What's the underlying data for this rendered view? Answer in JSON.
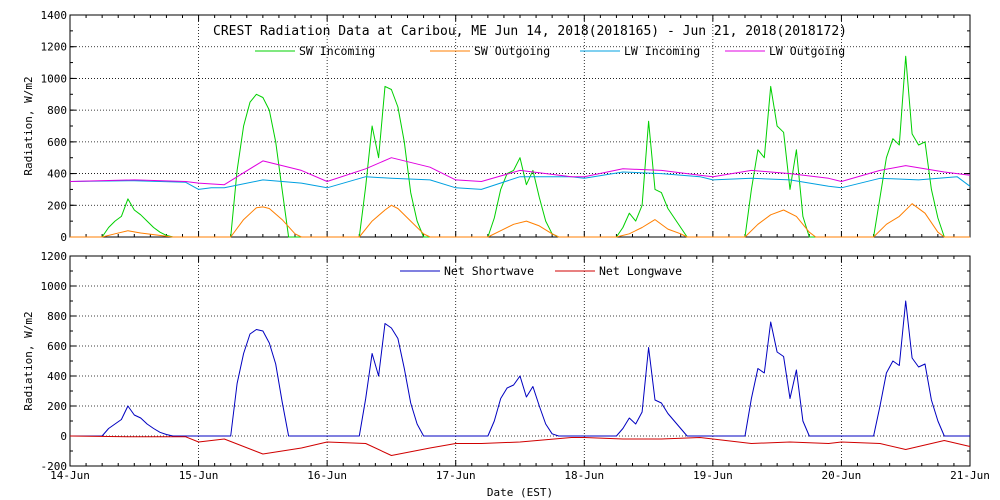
{
  "chart_data": [
    {
      "type": "line",
      "title": "CREST Radiation Data at Caribou, ME   Jun 14, 2018(2018165) - Jun 21, 2018(2018172)",
      "ylabel": "Radiation, W/m2",
      "xlabel": "",
      "ylim": [
        0,
        1400
      ],
      "yticks": [
        "0",
        "200",
        "400",
        "600",
        "800",
        "1000",
        "1200",
        "1400"
      ],
      "xlim": [
        0,
        7
      ],
      "grid": true,
      "legend": "top",
      "series": [
        {
          "name": "SW Incoming",
          "color": "#00d000",
          "x": [
            0.0,
            0.25,
            0.3,
            0.35,
            0.4,
            0.45,
            0.5,
            0.55,
            0.6,
            0.65,
            0.7,
            0.75,
            0.8,
            1.0,
            1.25,
            1.3,
            1.35,
            1.4,
            1.45,
            1.5,
            1.55,
            1.6,
            1.65,
            1.7,
            1.75,
            1.8,
            1.85,
            2.0,
            2.25,
            2.3,
            2.35,
            2.4,
            2.45,
            2.5,
            2.55,
            2.6,
            2.65,
            2.7,
            2.75,
            2.8,
            3.0,
            3.25,
            3.3,
            3.35,
            3.4,
            3.45,
            3.5,
            3.55,
            3.6,
            3.65,
            3.7,
            3.75,
            3.8,
            4.0,
            4.25,
            4.3,
            4.35,
            4.4,
            4.45,
            4.5,
            4.55,
            4.6,
            4.65,
            4.7,
            4.75,
            4.8,
            5.0,
            5.25,
            5.3,
            5.35,
            5.4,
            5.45,
            5.5,
            5.55,
            5.6,
            5.65,
            5.7,
            5.75,
            5.8,
            6.0,
            6.25,
            6.3,
            6.35,
            6.4,
            6.45,
            6.5,
            6.55,
            6.6,
            6.65,
            6.7,
            6.75,
            6.8,
            7.0
          ],
          "y": [
            0,
            0,
            60,
            100,
            130,
            240,
            170,
            140,
            100,
            60,
            30,
            10,
            0,
            0,
            0,
            420,
            700,
            850,
            900,
            880,
            800,
            600,
            300,
            0,
            0,
            0,
            0,
            0,
            0,
            320,
            700,
            500,
            950,
            930,
            820,
            600,
            280,
            100,
            0,
            0,
            0,
            0,
            120,
            300,
            400,
            420,
            500,
            330,
            420,
            250,
            100,
            20,
            0,
            0,
            0,
            60,
            150,
            100,
            200,
            730,
            300,
            280,
            180,
            120,
            60,
            0,
            0,
            0,
            300,
            550,
            500,
            950,
            700,
            660,
            300,
            550,
            130,
            0,
            0,
            0,
            0,
            250,
            500,
            620,
            580,
            1140,
            650,
            580,
            600,
            300,
            120,
            0,
            0
          ]
        },
        {
          "name": "SW Outgoing",
          "color": "#ff7f00",
          "x": [
            0.0,
            0.25,
            0.35,
            0.45,
            0.55,
            0.65,
            0.75,
            0.8,
            1.0,
            1.25,
            1.35,
            1.45,
            1.5,
            1.55,
            1.65,
            1.75,
            1.8,
            2.0,
            2.25,
            2.35,
            2.45,
            2.5,
            2.55,
            2.65,
            2.75,
            2.8,
            3.0,
            3.25,
            3.35,
            3.45,
            3.55,
            3.65,
            3.75,
            3.8,
            4.0,
            4.25,
            4.35,
            4.45,
            4.55,
            4.65,
            4.75,
            4.8,
            5.0,
            5.25,
            5.35,
            5.45,
            5.55,
            5.65,
            5.75,
            5.8,
            6.0,
            6.25,
            6.35,
            6.45,
            6.55,
            6.65,
            6.75,
            6.8,
            7.0
          ],
          "y": [
            0,
            0,
            20,
            40,
            25,
            15,
            5,
            0,
            0,
            0,
            110,
            185,
            190,
            180,
            110,
            20,
            0,
            0,
            0,
            100,
            170,
            200,
            180,
            100,
            20,
            0,
            0,
            0,
            40,
            80,
            100,
            70,
            20,
            0,
            0,
            0,
            20,
            60,
            110,
            50,
            20,
            0,
            0,
            0,
            80,
            140,
            170,
            130,
            30,
            0,
            0,
            0,
            80,
            130,
            210,
            150,
            30,
            0,
            0
          ]
        },
        {
          "name": "LW Incoming",
          "color": "#00a0e0",
          "x": [
            0.0,
            0.5,
            0.9,
            1.0,
            1.1,
            1.2,
            1.5,
            1.8,
            2.0,
            2.3,
            2.5,
            2.8,
            3.0,
            3.2,
            3.5,
            3.9,
            4.0,
            4.3,
            4.6,
            4.9,
            5.0,
            5.3,
            5.6,
            5.9,
            6.0,
            6.3,
            6.6,
            6.9,
            7.0
          ],
          "y": [
            350,
            355,
            345,
            300,
            310,
            310,
            360,
            340,
            310,
            380,
            370,
            360,
            310,
            300,
            380,
            380,
            370,
            410,
            400,
            380,
            360,
            370,
            360,
            320,
            310,
            370,
            360,
            380,
            320
          ]
        },
        {
          "name": "LW Outgoing",
          "color": "#e000e0",
          "x": [
            0.0,
            0.5,
            0.9,
            1.0,
            1.2,
            1.5,
            1.8,
            2.0,
            2.3,
            2.5,
            2.8,
            3.0,
            3.2,
            3.5,
            3.9,
            4.0,
            4.3,
            4.6,
            4.9,
            5.0,
            5.3,
            5.6,
            5.9,
            6.0,
            6.3,
            6.5,
            6.8,
            7.0
          ],
          "y": [
            350,
            360,
            350,
            340,
            330,
            480,
            420,
            350,
            430,
            500,
            440,
            360,
            350,
            420,
            380,
            380,
            430,
            420,
            390,
            380,
            420,
            400,
            370,
            350,
            420,
            450,
            410,
            390
          ]
        }
      ]
    },
    {
      "type": "line",
      "title": "",
      "ylabel": "Radiation, W/m2",
      "xlabel": "Date (EST)",
      "ylim": [
        -200,
        1200
      ],
      "yticks": [
        "-200",
        "0",
        "200",
        "400",
        "600",
        "800",
        "1000",
        "1200"
      ],
      "xlim": [
        0,
        7
      ],
      "xticks": [
        "14-Jun",
        "15-Jun",
        "16-Jun",
        "17-Jun",
        "18-Jun",
        "19-Jun",
        "20-Jun",
        "21-Jun"
      ],
      "grid": true,
      "legend": "top",
      "series": [
        {
          "name": "Net Shortwave",
          "color": "#0000c0",
          "x": [
            0.0,
            0.25,
            0.3,
            0.35,
            0.4,
            0.45,
            0.5,
            0.55,
            0.6,
            0.65,
            0.7,
            0.75,
            0.8,
            1.0,
            1.25,
            1.3,
            1.35,
            1.4,
            1.45,
            1.5,
            1.55,
            1.6,
            1.65,
            1.7,
            1.75,
            1.8,
            2.0,
            2.25,
            2.3,
            2.35,
            2.4,
            2.45,
            2.5,
            2.55,
            2.6,
            2.65,
            2.7,
            2.75,
            2.8,
            3.0,
            3.25,
            3.3,
            3.35,
            3.4,
            3.45,
            3.5,
            3.55,
            3.6,
            3.65,
            3.7,
            3.75,
            3.8,
            4.0,
            4.25,
            4.3,
            4.35,
            4.4,
            4.45,
            4.5,
            4.55,
            4.6,
            4.65,
            4.7,
            4.75,
            4.8,
            5.0,
            5.25,
            5.3,
            5.35,
            5.4,
            5.45,
            5.5,
            5.55,
            5.6,
            5.65,
            5.7,
            5.75,
            5.8,
            6.0,
            6.25,
            6.3,
            6.35,
            6.4,
            6.45,
            6.5,
            6.55,
            6.6,
            6.65,
            6.7,
            6.75,
            6.8,
            7.0
          ],
          "y": [
            0,
            0,
            50,
            80,
            110,
            200,
            140,
            120,
            80,
            50,
            25,
            10,
            0,
            0,
            0,
            350,
            550,
            680,
            710,
            700,
            620,
            480,
            230,
            0,
            0,
            0,
            0,
            0,
            250,
            550,
            400,
            750,
            720,
            650,
            450,
            220,
            80,
            0,
            0,
            0,
            0,
            100,
            250,
            320,
            340,
            400,
            260,
            330,
            200,
            80,
            15,
            0,
            0,
            0,
            50,
            120,
            80,
            160,
            590,
            240,
            220,
            150,
            100,
            50,
            0,
            0,
            0,
            250,
            450,
            420,
            760,
            560,
            530,
            250,
            440,
            100,
            0,
            0,
            0,
            0,
            200,
            420,
            500,
            470,
            900,
            520,
            460,
            480,
            240,
            100,
            0,
            0
          ]
        },
        {
          "name": "Net Longwave",
          "color": "#d00000",
          "x": [
            0.0,
            0.5,
            0.9,
            1.0,
            1.2,
            1.5,
            1.8,
            2.0,
            2.3,
            2.5,
            2.8,
            3.0,
            3.2,
            3.5,
            3.9,
            4.0,
            4.3,
            4.6,
            4.9,
            5.0,
            5.3,
            5.6,
            5.9,
            6.0,
            6.3,
            6.5,
            6.8,
            7.0
          ],
          "y": [
            0,
            -5,
            -5,
            -40,
            -20,
            -120,
            -80,
            -40,
            -50,
            -130,
            -80,
            -50,
            -50,
            -40,
            -10,
            -10,
            -20,
            -20,
            -10,
            -20,
            -50,
            -40,
            -50,
            -40,
            -50,
            -90,
            -30,
            -70
          ]
        }
      ]
    }
  ]
}
